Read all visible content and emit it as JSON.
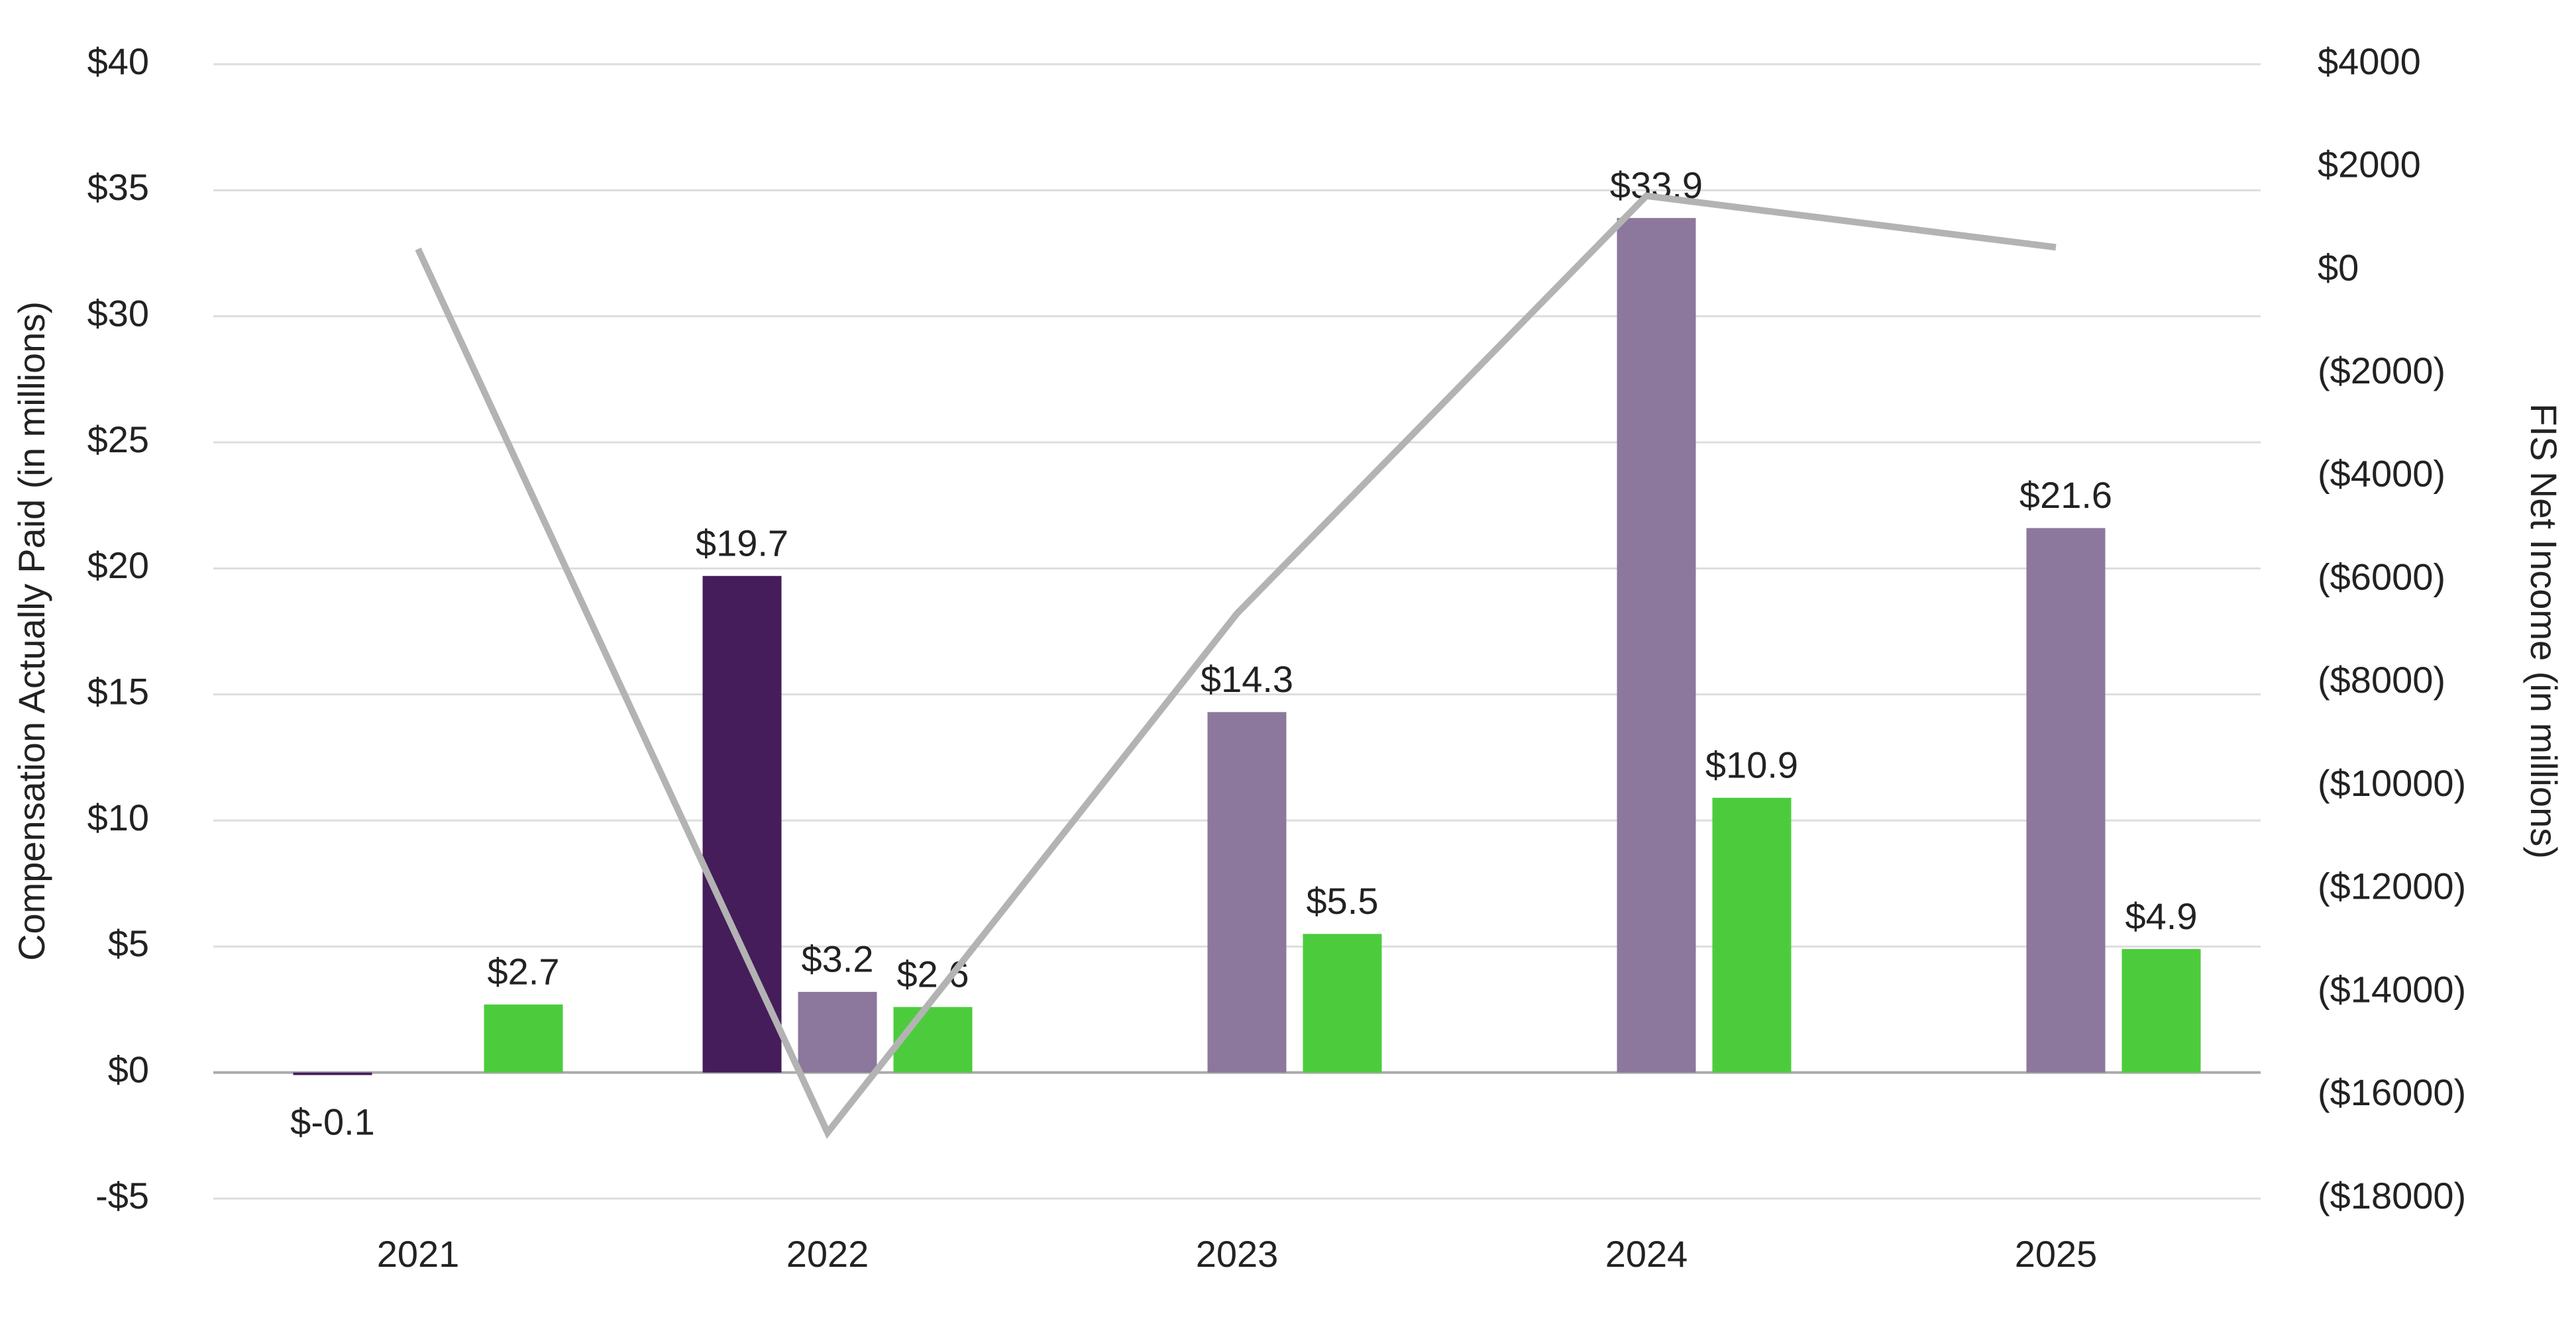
{
  "chart_data": {
    "type": "bar",
    "y_label": "Compensation Actually Paid (in millions)",
    "y2_label": "FIS Net Income (in millions)",
    "categories": [
      "2021",
      "2022",
      "2023",
      "2024",
      "2025"
    ],
    "series": [
      {
        "type": "bar",
        "color": "#451d5a",
        "values": [
          -0.1,
          19.7,
          null,
          null,
          null
        ],
        "value_labels": [
          "$-0.1",
          "$19.7",
          null,
          null,
          null
        ]
      },
      {
        "type": "bar",
        "color": "#8c789c",
        "values": [
          null,
          3.2,
          14.3,
          33.9,
          21.6
        ],
        "value_labels": [
          null,
          "$3.2",
          "$14.3",
          "$33.9",
          "$21.6"
        ]
      },
      {
        "type": "bar",
        "color": "#4ccc3d",
        "values": [
          2.7,
          2.6,
          5.5,
          10.9,
          4.9
        ],
        "value_labels": [
          "$2.7",
          "$2.6",
          "$5.5",
          "$10.9",
          "$4.9"
        ]
      },
      {
        "type": "line",
        "axis": "y2",
        "color": "#b3b3b3",
        "values": [
          417,
          -16720,
          -6654,
          1447,
          450
        ]
      }
    ],
    "ylim": [
      -5,
      40
    ],
    "yticks": [
      {
        "value": -5,
        "label": "-$5"
      },
      {
        "value": 0,
        "label": "$0"
      },
      {
        "value": 5,
        "label": "$5"
      },
      {
        "value": 10,
        "label": "$10"
      },
      {
        "value": 15,
        "label": "$15"
      },
      {
        "value": 20,
        "label": "$20"
      },
      {
        "value": 25,
        "label": "$25"
      },
      {
        "value": 30,
        "label": "$30"
      },
      {
        "value": 35,
        "label": "$35"
      },
      {
        "value": 40,
        "label": "$40"
      }
    ],
    "y2lim": [
      -18000,
      4000
    ],
    "y2ticks": [
      {
        "value": -18000,
        "label": "($18000)"
      },
      {
        "value": -16000,
        "label": "($16000)"
      },
      {
        "value": -14000,
        "label": "($14000)"
      },
      {
        "value": -12000,
        "label": "($12000)"
      },
      {
        "value": -10000,
        "label": "($10000)"
      },
      {
        "value": -8000,
        "label": "($8000)"
      },
      {
        "value": -6000,
        "label": "($6000)"
      },
      {
        "value": -4000,
        "label": "($4000)"
      },
      {
        "value": -2000,
        "label": "($2000)"
      },
      {
        "value": 0,
        "label": "$0"
      },
      {
        "value": 2000,
        "label": "$2000"
      },
      {
        "value": 4000,
        "label": "$4000"
      }
    ],
    "grid": true
  }
}
